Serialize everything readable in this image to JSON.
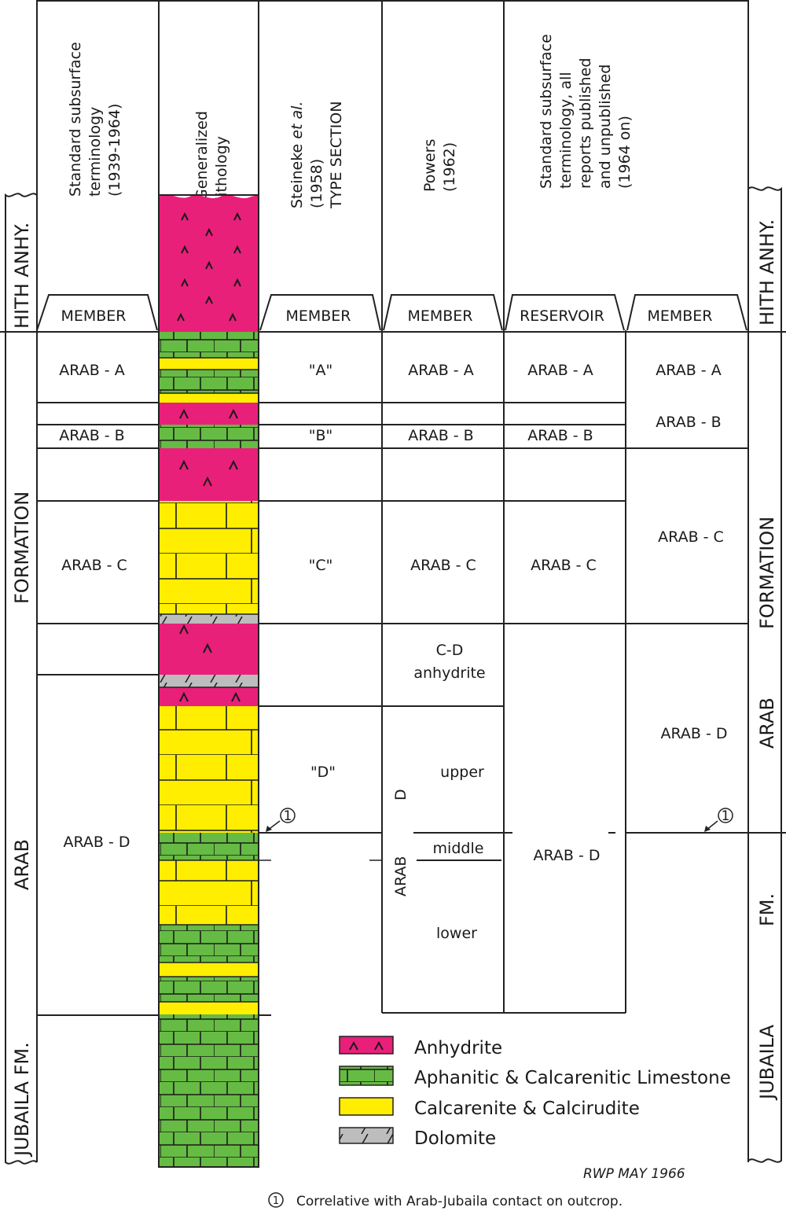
{
  "headers": {
    "col1": [
      "Standard subsurface",
      "terminology",
      "(1939-1964)"
    ],
    "col2": [
      "Generalized",
      "lithology"
    ],
    "col3_line1_prefix": "Steineke ",
    "col3_line1_italic": "et al.",
    "col3_rest": [
      "(1958)",
      "TYPE SECTION"
    ],
    "col4": [
      "Powers",
      "(1962)"
    ],
    "col5": [
      "Standard subsurface",
      "terminology, all",
      "reports published",
      "and unpublished",
      "(1964 on)"
    ]
  },
  "tabs": {
    "col1": "MEMBER",
    "col3": "MEMBER",
    "col4": "MEMBER",
    "col5": "RESERVOIR",
    "col6": "MEMBER"
  },
  "side_labels": {
    "left_hith": "HITH ANHY.",
    "left_formation": "FORMATION",
    "left_arab": "ARAB",
    "left_jubaila": "JUBAILA  FM.",
    "right_hith": "HITH ANHY.",
    "right_formation": "FORMATION",
    "right_arab": "ARAB",
    "right_fm": "FM.",
    "right_jubaila": "JUBAILA"
  },
  "cells": {
    "c1_a": "ARAB - A",
    "c1_b": "ARAB - B",
    "c1_c": "ARAB - C",
    "c1_d": "ARAB - D",
    "c3_a": "\"A\"",
    "c3_b": "\"B\"",
    "c3_c": "\"C\"",
    "c3_d": "\"D\"",
    "c4_a": "ARAB - A",
    "c4_b": "ARAB - B",
    "c4_c": "ARAB - C",
    "c4_cd1": "C-D",
    "c4_cd2": "anhydrite",
    "c4_upper": "upper",
    "c4_middle": "middle",
    "c4_lower": "lower",
    "c4_arab": "ARAB",
    "c4_d": "D",
    "c5_a": "ARAB - A",
    "c5_b": "ARAB - B",
    "c5_c": "ARAB - C",
    "c5_d": "ARAB - D",
    "c6_a": "ARAB - A",
    "c6_b": "ARAB - B",
    "c6_c": "ARAB - C",
    "c6_d": "ARAB - D"
  },
  "marker_symbol": "1",
  "legend": [
    {
      "label": "Anhydrite",
      "color": "#e8207a"
    },
    {
      "label": "Aphanitic & Calcarenitic Limestone",
      "color": "#66bb44"
    },
    {
      "label": "Calcarenite & Calcirudite",
      "color": "#ffee00"
    },
    {
      "label": "Dolomite",
      "color": "#bdbdbd"
    }
  ],
  "signature": "RWP  MAY 1966",
  "footnote_symbol": "1",
  "footnote": "Correlative with Arab-Jubaila contact on outcrop.",
  "colors": {
    "anhydrite": "#e8207a",
    "limestone": "#66bb44",
    "calcarenite": "#ffee00",
    "dolomite": "#bdbdbd"
  }
}
